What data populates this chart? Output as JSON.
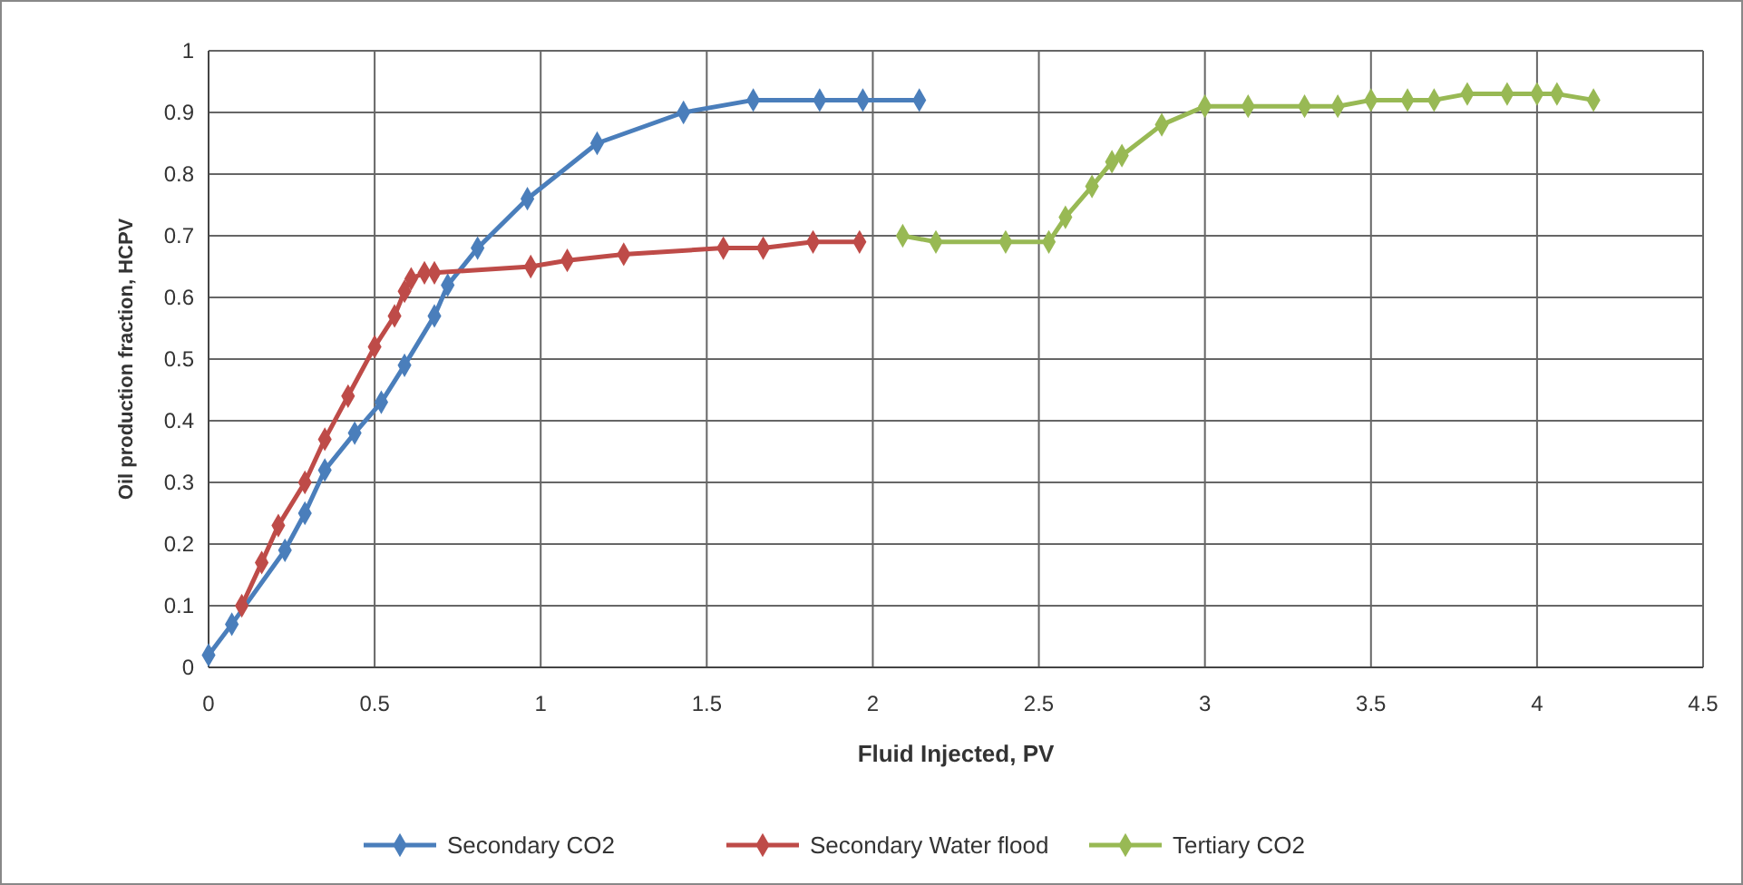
{
  "chart_data": {
    "type": "line",
    "xlabel": "Fluid Injected, PV",
    "ylabel": "Oil production fraction, HCPV",
    "xlim": [
      0,
      4.5
    ],
    "xticks": [
      0,
      0.5,
      1,
      1.5,
      2,
      2.5,
      3,
      3.5,
      4,
      4.5
    ],
    "ylim": [
      0,
      1
    ],
    "yticks": [
      0,
      0.1,
      0.2,
      0.3,
      0.4,
      0.5,
      0.6,
      0.7,
      0.8,
      0.9,
      1
    ],
    "grid": true,
    "legend": "bottom",
    "marker": "diamond",
    "line_style": "solid",
    "series": [
      {
        "name": "Secondary CO2",
        "color": "#4a7ebb",
        "x": [
          0,
          0.07,
          0.23,
          0.29,
          0.35,
          0.44,
          0.52,
          0.59,
          0.68,
          0.72,
          0.81,
          0.96,
          1.17,
          1.43,
          1.64,
          1.84,
          1.97,
          2.14
        ],
        "values": [
          0.02,
          0.07,
          0.19,
          0.25,
          0.32,
          0.38,
          0.43,
          0.49,
          0.57,
          0.62,
          0.68,
          0.76,
          0.85,
          0.9,
          0.92,
          0.92,
          0.92,
          0.92
        ]
      },
      {
        "name": "Secondary Water flood",
        "color": "#be4b48",
        "x": [
          0.1,
          0.16,
          0.21,
          0.29,
          0.35,
          0.42,
          0.5,
          0.56,
          0.59,
          0.61,
          0.65,
          0.68,
          0.97,
          1.08,
          1.25,
          1.55,
          1.67,
          1.82,
          1.96
        ],
        "values": [
          0.1,
          0.17,
          0.23,
          0.3,
          0.37,
          0.44,
          0.52,
          0.57,
          0.61,
          0.63,
          0.64,
          0.64,
          0.65,
          0.66,
          0.67,
          0.68,
          0.68,
          0.69,
          0.69
        ]
      },
      {
        "name": "Tertiary CO2",
        "color": "#98b954",
        "x": [
          2.09,
          2.19,
          2.4,
          2.53,
          2.58,
          2.66,
          2.72,
          2.75,
          2.87,
          3.0,
          3.13,
          3.3,
          3.4,
          3.5,
          3.61,
          3.69,
          3.79,
          3.91,
          4.0,
          4.06,
          4.17
        ],
        "values": [
          0.7,
          0.69,
          0.69,
          0.69,
          0.73,
          0.78,
          0.82,
          0.83,
          0.88,
          0.91,
          0.91,
          0.91,
          0.91,
          0.92,
          0.92,
          0.92,
          0.93,
          0.93,
          0.93,
          0.93,
          0.92
        ]
      }
    ]
  }
}
